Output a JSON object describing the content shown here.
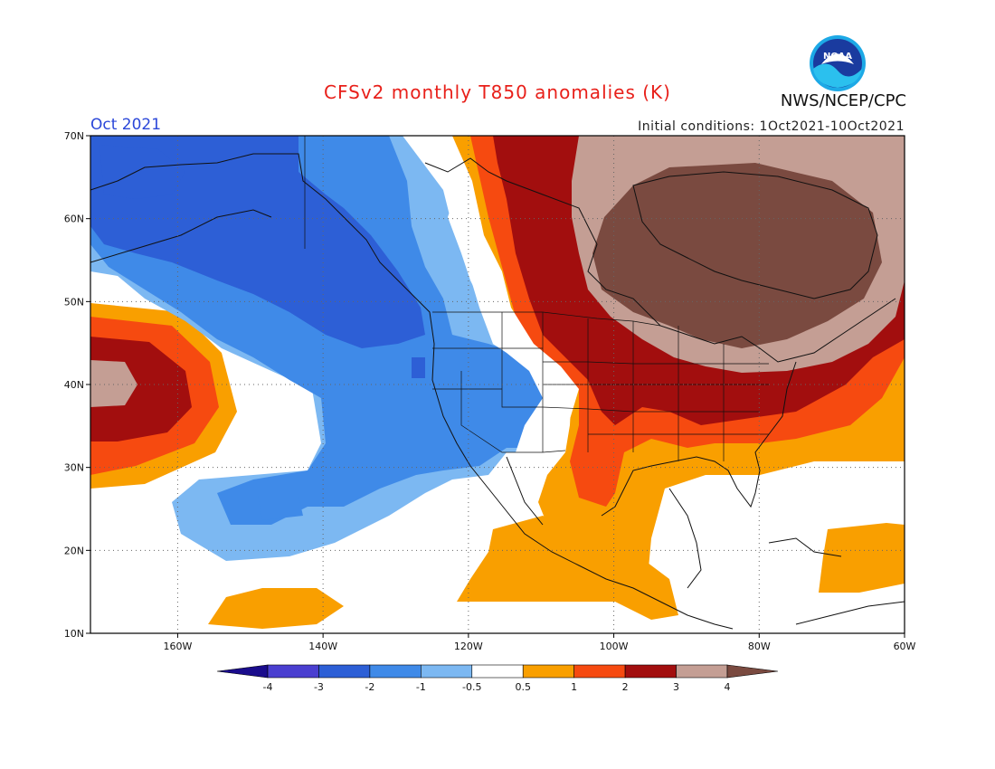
{
  "header": {
    "title": "CFSv2 monthly T850 anomalies (K)",
    "org": "NWS/NCEP/CPC",
    "month": "Oct 2021",
    "initial_conditions": "Initial conditions: 1Oct2021-10Oct2021",
    "logo_text": "NOAA"
  },
  "map": {
    "lon_min": -172,
    "lon_max": -60,
    "lat_min": 10,
    "lat_max": 70,
    "lat_ticks": [
      {
        "value": 70,
        "label": "70N"
      },
      {
        "value": 60,
        "label": "60N"
      },
      {
        "value": 50,
        "label": "50N"
      },
      {
        "value": 40,
        "label": "40N"
      },
      {
        "value": 30,
        "label": "30N"
      },
      {
        "value": 20,
        "label": "20N"
      },
      {
        "value": 10,
        "label": "10N"
      }
    ],
    "lon_ticks": [
      {
        "value": -160,
        "label": "160W"
      },
      {
        "value": -140,
        "label": "140W"
      },
      {
        "value": -120,
        "label": "120W"
      },
      {
        "value": -100,
        "label": "100W"
      },
      {
        "value": -80,
        "label": "80W"
      },
      {
        "value": -60,
        "label": "60W"
      }
    ]
  },
  "colorbar": {
    "colors": [
      "#1a0c8c",
      "#4a3fd0",
      "#2d5fd6",
      "#3f8ae8",
      "#7cb8f2",
      "#ffffff",
      "#f99f00",
      "#f64a10",
      "#a20e0e",
      "#c49e94",
      "#7a4a40"
    ],
    "labels": [
      "-4",
      "-3",
      "-2",
      "-1",
      "-0.5",
      "0.5",
      "1",
      "2",
      "3",
      "4"
    ]
  }
}
